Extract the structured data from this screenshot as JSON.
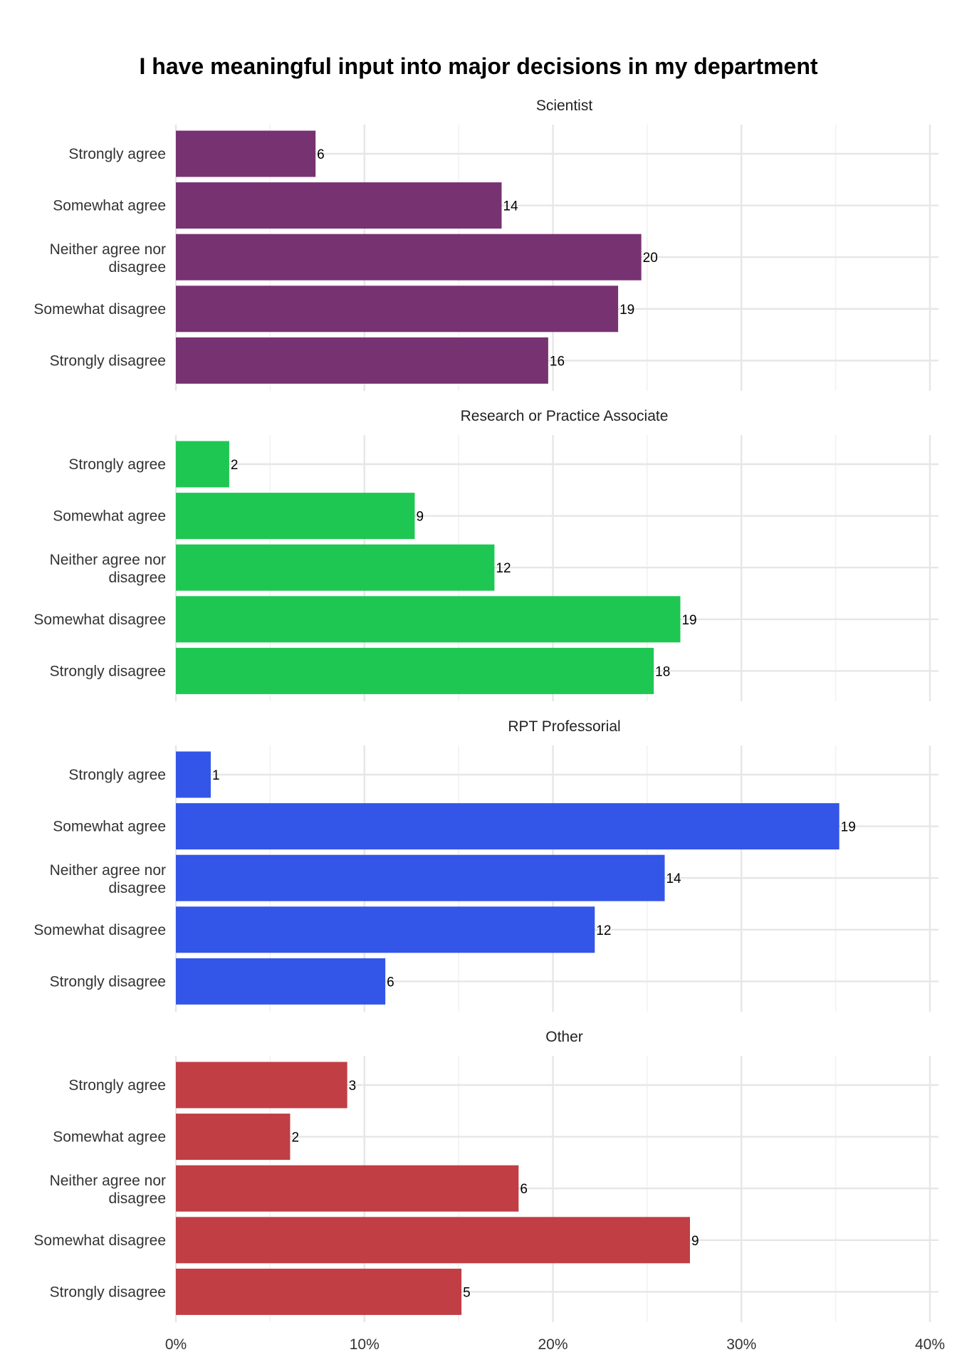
{
  "chart_data": {
    "type": "bar",
    "orientation": "horizontal",
    "title": "I have meaningful input into major decisions in my department",
    "xlabel": "",
    "ylabel": "",
    "x_ticks": [
      "0%",
      "10%",
      "20%",
      "30%",
      "40%"
    ],
    "xlim": [
      0,
      0.4
    ],
    "grid": true,
    "legend": "none",
    "categories": [
      "Strongly agree",
      "Somewhat agree",
      "Neither agree nor disagree",
      "Somewhat disagree",
      "Strongly disagree"
    ],
    "category_lines": [
      [
        "Strongly agree"
      ],
      [
        "Somewhat agree"
      ],
      [
        "Neither agree nor",
        "disagree"
      ],
      [
        "Somewhat disagree"
      ],
      [
        "Strongly disagree"
      ]
    ],
    "panels": [
      {
        "title": "Scientist",
        "color": "#773272",
        "percent": [
          0.0741,
          0.1728,
          0.2469,
          0.2346,
          0.1975
        ],
        "counts": [
          "6",
          "14",
          "20",
          "19",
          "16"
        ]
      },
      {
        "title": "Research or Practice Associate",
        "color": "#1ec752",
        "percent": [
          0.0283,
          0.1267,
          0.169,
          0.2676,
          0.2535
        ],
        "counts": [
          "2",
          "9",
          "12",
          "19",
          "18"
        ]
      },
      {
        "title": "RPT Professorial",
        "color": "#3355e8",
        "percent": [
          0.0185,
          0.3519,
          0.2593,
          0.2222,
          0.1111
        ],
        "counts": [
          "1",
          "19",
          "14",
          "12",
          "6"
        ]
      },
      {
        "title": "Other",
        "color": "#c03e44",
        "percent": [
          0.0909,
          0.0606,
          0.1818,
          0.2727,
          0.1515
        ],
        "counts": [
          "3",
          "2",
          "6",
          "9",
          "5"
        ]
      }
    ]
  }
}
